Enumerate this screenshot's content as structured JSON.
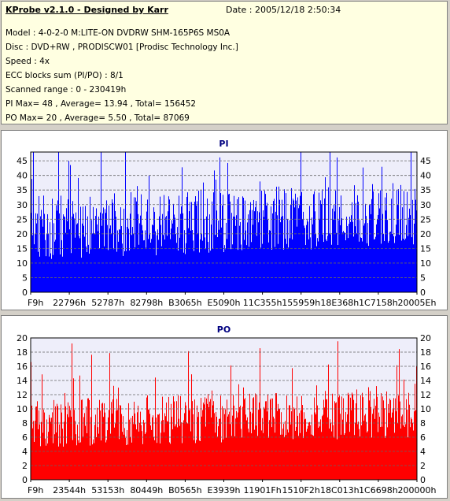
{
  "header": {
    "title": "KProbe v2.1.0 - Designed by Karr",
    "date": "Date : 2005/12/18 2:50:34",
    "lines": [
      "Model : 4-0-2-0 M:LITE-ON DVDRW SHM-165P6S MS0A",
      "Disc : DVD+RW , PRODISCW01 [Prodisc Technology Inc.]",
      "Speed : 4x",
      "ECC blocks sum (PI/PO) : 8/1",
      "Scanned range : 0 - 230419h",
      "PI Max= 48 , Average= 13.94 , Total= 156452",
      "PO Max= 20 , Average= 5.50 , Total= 87069"
    ]
  },
  "colors": {
    "pi": "#0000ff",
    "po": "#ff0000",
    "plot_bg": "#eeeefa",
    "title": "#000080"
  },
  "chart_data": [
    {
      "type": "bar",
      "title": "PI",
      "ylim": [
        0,
        48
      ],
      "yticks": [
        0,
        5,
        10,
        15,
        20,
        25,
        30,
        35,
        40,
        45
      ],
      "xticks": [
        "F9h",
        "22796h",
        "52787h",
        "82798h",
        "B3065h",
        "E5090h",
        "11C355h",
        "155959h",
        "18E368h",
        "1C7158h",
        "20005Eh"
      ],
      "grid": true,
      "summary": {
        "max": 48,
        "average": 13.94,
        "total": 156452
      }
    },
    {
      "type": "bar",
      "title": "PO",
      "ylim": [
        0,
        20
      ],
      "yticks": [
        0,
        2,
        4,
        6,
        8,
        10,
        12,
        14,
        16,
        18,
        20
      ],
      "xticks": [
        "F9h",
        "23544h",
        "53153h",
        "80449h",
        "B0565h",
        "E3939h",
        "11901Fh",
        "1510F2h",
        "18C013h",
        "1C6698h",
        "200000h"
      ],
      "grid": true,
      "summary": {
        "max": 20,
        "average": 5.5,
        "total": 87069
      }
    }
  ]
}
